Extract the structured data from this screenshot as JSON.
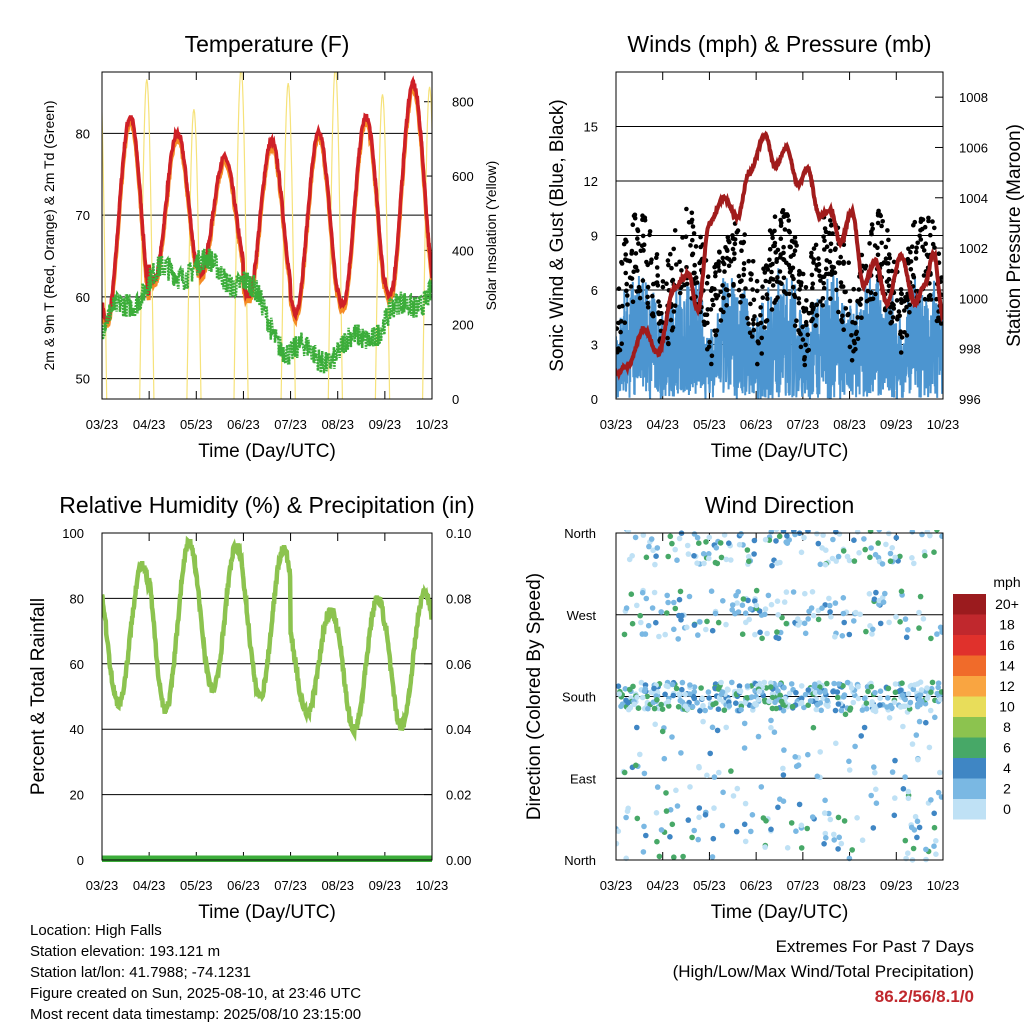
{
  "charts": [
    {
      "type": "line",
      "title": "Temperature (F)",
      "xlabel": "Time (Day/UTC)",
      "ylabel_left": "2m & 9m T (Red, Orange) & 2m Td (Green)",
      "ylabel_right": "Solar Insolation (Yellow)",
      "x_ticks": [
        "03/23",
        "04/23",
        "05/23",
        "06/23",
        "07/23",
        "08/23",
        "09/23",
        "10/23"
      ],
      "yleft_ticks": [
        50,
        60,
        70,
        80
      ],
      "yright_ticks": [
        0,
        200,
        400,
        600,
        800
      ]
    },
    {
      "type": "line",
      "title": "Winds (mph) & Pressure (mb)",
      "xlabel": "Time (Day/UTC)",
      "ylabel_left": "Sonic Wind & Gust (Blue, Black)",
      "ylabel_right": "Station Pressure (Maroon)",
      "x_ticks": [
        "03/23",
        "04/23",
        "05/23",
        "06/23",
        "07/23",
        "08/23",
        "09/23",
        "10/23"
      ],
      "yleft_ticks": [
        0,
        3,
        6,
        9,
        12,
        15
      ],
      "yright_ticks": [
        996,
        998,
        1000,
        1002,
        1004,
        1006,
        1008
      ]
    },
    {
      "type": "line",
      "title": "Relative Humidity (%) & Precipitation (in)",
      "xlabel": "Time (Day/UTC)",
      "ylabel_left": "Percent & Total Rainfall",
      "x_ticks": [
        "03/23",
        "04/23",
        "05/23",
        "06/23",
        "07/23",
        "08/23",
        "09/23",
        "10/23"
      ],
      "yleft_ticks": [
        "0",
        "20",
        "40",
        "60",
        "80",
        "100"
      ],
      "yright_ticks": [
        "0.00",
        "0.02",
        "0.04",
        "0.06",
        "0.08",
        "0.10"
      ]
    },
    {
      "type": "scatter",
      "title": "Wind Direction",
      "xlabel": "Time (Day/UTC)",
      "ylabel_left": "Direction (Colored By Speed)",
      "x_ticks": [
        "03/23",
        "04/23",
        "05/23",
        "06/23",
        "07/23",
        "08/23",
        "09/23",
        "10/23"
      ],
      "y_ticks": [
        "North",
        "East",
        "South",
        "West",
        "North"
      ],
      "legend_title": "mph",
      "legend_labels": [
        "20+",
        "18",
        "16",
        "14",
        "12",
        "10",
        "8",
        "6",
        "4",
        "2",
        "0"
      ],
      "legend_colors": [
        "#9b1b1e",
        "#c0282d",
        "#e0312c",
        "#f06b2a",
        "#f9a541",
        "#e8dd5a",
        "#8cc34f",
        "#47a867",
        "#3f86c4",
        "#7ab8e3",
        "#bfe1f5"
      ]
    }
  ],
  "station": {
    "location": "Location: High Falls",
    "elevation": "Station elevation: 193.121 m",
    "latlon": "Station lat/lon: 41.7988; -74.1231",
    "created": "Figure created on Sun, 2025-08-10, at 23:46 UTC",
    "recent": "Most recent data timestamp: 2025/08/10 23:15:00"
  },
  "extremes": {
    "line1": "Extremes For Past 7 Days",
    "line2": "(High/Low/Max Wind/Total Precipitation)",
    "value": "86.2/56/8.1/0"
  },
  "colors": {
    "temp2m": "#cf2027",
    "temp9m": "#f58b24",
    "dewpoint": "#3cad3a",
    "solar": "#f6e27a",
    "wind": "#4c95d0",
    "gust": "#000000",
    "pressure": "#a11c1c",
    "humidity": "#8cc34f",
    "precip": "#3cad3a"
  }
}
